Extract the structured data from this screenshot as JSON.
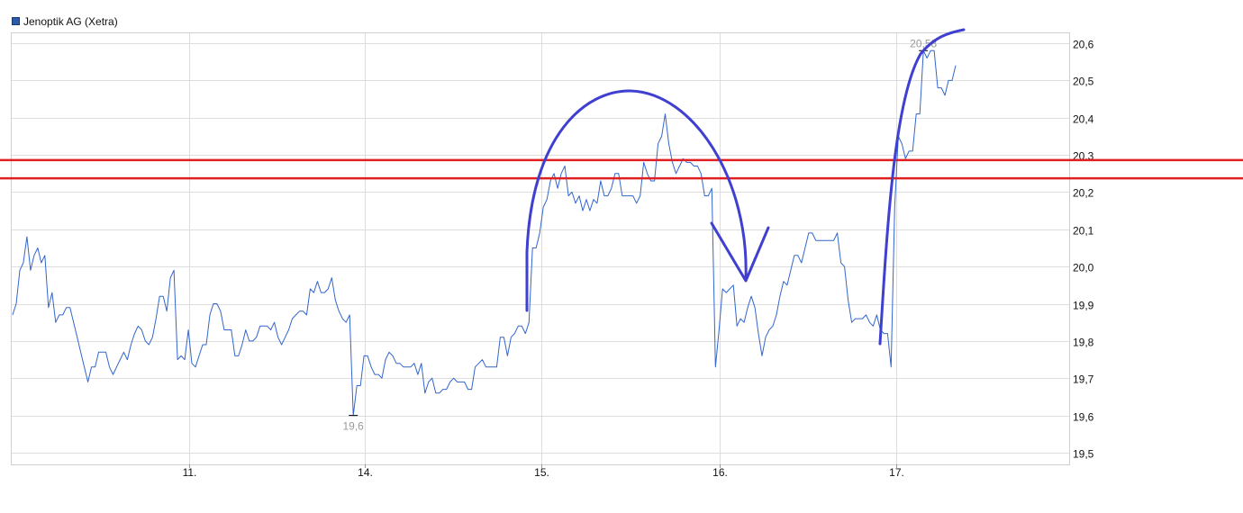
{
  "chart_data": {
    "type": "line",
    "title": "",
    "xlabel": "",
    "ylabel": "",
    "legend": {
      "position": "top-left",
      "entries": [
        "Jenoptik AG (Xetra)"
      ]
    },
    "grid": true,
    "ylim": [
      19.47,
      20.63
    ],
    "y_ticks": [
      "19,5",
      "19,6",
      "19,7",
      "19,8",
      "19,9",
      "20,0",
      "20,1",
      "20,2",
      "20,3",
      "20,4",
      "20,5",
      "20,6"
    ],
    "y_tick_values": [
      19.5,
      19.6,
      19.7,
      19.8,
      19.9,
      20.0,
      20.1,
      20.2,
      20.3,
      20.4,
      20.5,
      20.6
    ],
    "x_ticks": [
      "11.",
      "14.",
      "15.",
      "16.",
      "17."
    ],
    "series": [
      {
        "name": "Jenoptik AG (Xetra)",
        "color": "#3366cc",
        "values": [
          19.87,
          19.9,
          19.99,
          20.01,
          20.08,
          19.99,
          20.03,
          20.05,
          20.01,
          20.03,
          19.89,
          19.93,
          19.85,
          19.87,
          19.87,
          19.89,
          19.89,
          19.85,
          19.81,
          19.77,
          19.73,
          19.69,
          19.73,
          19.73,
          19.77,
          19.77,
          19.77,
          19.73,
          19.71,
          19.73,
          19.75,
          19.77,
          19.75,
          19.79,
          19.82,
          19.84,
          19.83,
          19.8,
          19.79,
          19.81,
          19.86,
          19.92,
          19.92,
          19.88,
          19.97,
          19.99,
          19.75,
          19.76,
          19.75,
          19.83,
          19.74,
          19.73,
          19.76,
          19.79,
          19.79,
          19.87,
          19.9,
          19.9,
          19.88,
          19.83,
          19.83,
          19.83,
          19.76,
          19.76,
          19.79,
          19.83,
          19.8,
          19.8,
          19.81,
          19.84,
          19.84,
          19.84,
          19.83,
          19.85,
          19.81,
          19.79,
          19.81,
          19.83,
          19.86,
          19.87,
          19.88,
          19.88,
          19.87,
          19.94,
          19.93,
          19.96,
          19.93,
          19.93,
          19.94,
          19.97,
          19.91,
          19.88,
          19.86,
          19.85,
          19.87,
          19.6,
          19.68,
          19.68,
          19.76,
          19.76,
          19.73,
          19.71,
          19.71,
          19.7,
          19.75,
          19.77,
          19.76,
          19.74,
          19.74,
          19.73,
          19.73,
          19.73,
          19.74,
          19.71,
          19.74,
          19.66,
          19.69,
          19.7,
          19.66,
          19.66,
          19.67,
          19.67,
          19.69,
          19.7,
          19.69,
          19.69,
          19.69,
          19.67,
          19.67,
          19.73,
          19.74,
          19.75,
          19.73,
          19.73,
          19.73,
          19.73,
          19.81,
          19.81,
          19.76,
          19.81,
          19.82,
          19.84,
          19.84,
          19.82,
          19.85,
          20.05,
          20.05,
          20.09,
          20.16,
          20.18,
          20.23,
          20.25,
          20.21,
          20.25,
          20.27,
          20.19,
          20.2,
          20.17,
          20.19,
          20.15,
          20.18,
          20.15,
          20.18,
          20.17,
          20.23,
          20.19,
          20.19,
          20.21,
          20.25,
          20.25,
          20.19,
          20.19,
          20.19,
          20.19,
          20.17,
          20.19,
          20.28,
          20.25,
          20.23,
          20.23,
          20.33,
          20.35,
          20.41,
          20.33,
          20.28,
          20.25,
          20.27,
          20.29,
          20.28,
          20.28,
          20.27,
          20.27,
          20.25,
          20.19,
          20.19,
          20.21,
          19.73,
          19.83,
          19.94,
          19.93,
          19.94,
          19.95,
          19.84,
          19.86,
          19.85,
          19.89,
          19.92,
          19.89,
          19.82,
          19.76,
          19.81,
          19.83,
          19.84,
          19.87,
          19.92,
          19.96,
          19.95,
          19.99,
          20.03,
          20.03,
          20.01,
          20.05,
          20.09,
          20.09,
          20.07,
          20.07,
          20.07,
          20.07,
          20.07,
          20.07,
          20.09,
          20.01,
          20.0,
          19.91,
          19.85,
          19.86,
          19.86,
          19.86,
          19.87,
          19.85,
          19.84,
          19.87,
          19.83,
          19.82,
          19.82,
          19.73,
          20.16,
          20.35,
          20.33,
          20.29,
          20.31,
          20.31,
          20.41,
          20.41,
          20.58,
          20.56,
          20.58,
          20.58,
          20.48,
          20.48,
          20.46,
          20.5,
          20.5,
          20.54
        ]
      }
    ],
    "annotations": {
      "min_label": "19,6",
      "max_label": "20,58",
      "horizontal_lines": [
        20.286,
        20.237
      ],
      "horizontal_line_color": "#e02020",
      "drawing_color": "#3f3fd0"
    }
  }
}
